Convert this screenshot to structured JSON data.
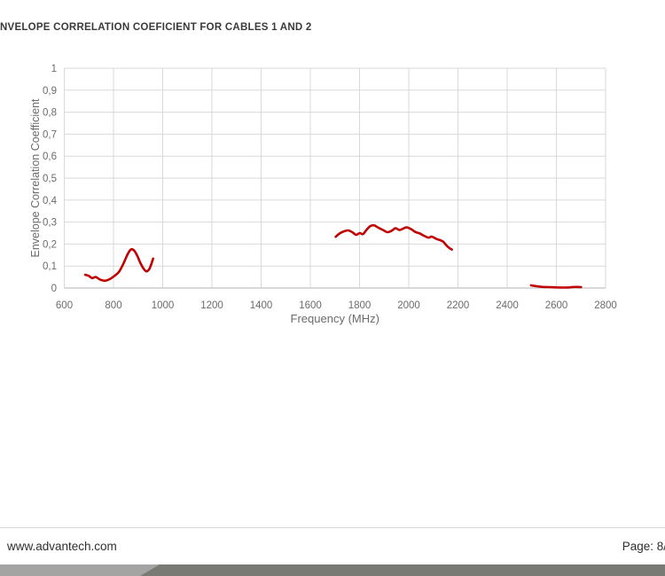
{
  "page": {
    "title_visible": "NVELOPE CORRELATION COEFICIENT FOR CABLES 1 AND 2"
  },
  "footer": {
    "website": "www.advantech.com",
    "page_label": "Page: 8/"
  },
  "colors": {
    "line": "#c00000",
    "gridline": "#d9d9d9",
    "axis_line": "#c2c2c2",
    "tick_label": "#6b6b6b",
    "axis_title": "#6b6b6b",
    "chart_title": "#3a3a3a",
    "footer_bar_light": "#a4a4a2",
    "footer_bar_dark": "#7a7a74",
    "background": "#ffffff"
  },
  "chart_data": {
    "type": "line",
    "title": "NVELOPE CORRELATION COEFICIENT FOR CABLES 1 AND 2",
    "xlabel": "Frequency (MHz)",
    "ylabel": "Envelope Correlation Coefficient",
    "xlim": [
      600,
      2800
    ],
    "ylim": [
      0,
      1
    ],
    "x_ticks": [
      600,
      800,
      1000,
      1200,
      1400,
      1600,
      1800,
      2000,
      2200,
      2400,
      2600,
      2800
    ],
    "y_ticks": [
      {
        "value": 1,
        "label": "1"
      },
      {
        "value": 0.9,
        "label": "0,9"
      },
      {
        "value": 0.8,
        "label": "0,8"
      },
      {
        "value": 0.7,
        "label": "0,7"
      },
      {
        "value": 0.6,
        "label": "0,6"
      },
      {
        "value": 0.5,
        "label": "0,5"
      },
      {
        "value": 0.4,
        "label": "0,4"
      },
      {
        "value": 0.3,
        "label": "0,3"
      },
      {
        "value": 0.2,
        "label": "0,2"
      },
      {
        "value": 0.1,
        "label": "0,1"
      },
      {
        "value": 0,
        "label": "0"
      }
    ],
    "grid": true,
    "legend": "none",
    "series": [
      {
        "color": "#c00000",
        "line_width": 2.6,
        "segments": [
          [
            [
              685,
              0.06
            ],
            [
              700,
              0.055
            ],
            [
              713,
              0.045
            ],
            [
              728,
              0.05
            ],
            [
              746,
              0.038
            ],
            [
              766,
              0.033
            ],
            [
              786,
              0.041
            ],
            [
              806,
              0.057
            ],
            [
              822,
              0.073
            ],
            [
              840,
              0.11
            ],
            [
              858,
              0.155
            ],
            [
              872,
              0.176
            ],
            [
              885,
              0.169
            ],
            [
              897,
              0.146
            ],
            [
              909,
              0.115
            ],
            [
              921,
              0.09
            ],
            [
              933,
              0.076
            ],
            [
              945,
              0.085
            ],
            [
              953,
              0.107
            ],
            [
              961,
              0.134
            ]
          ],
          [
            [
              1703,
              0.233
            ],
            [
              1719,
              0.248
            ],
            [
              1737,
              0.258
            ],
            [
              1755,
              0.262
            ],
            [
              1770,
              0.254
            ],
            [
              1786,
              0.242
            ],
            [
              1801,
              0.25
            ],
            [
              1814,
              0.245
            ],
            [
              1828,
              0.264
            ],
            [
              1843,
              0.281
            ],
            [
              1859,
              0.285
            ],
            [
              1877,
              0.274
            ],
            [
              1895,
              0.264
            ],
            [
              1913,
              0.254
            ],
            [
              1931,
              0.261
            ],
            [
              1946,
              0.272
            ],
            [
              1961,
              0.264
            ],
            [
              1975,
              0.269
            ],
            [
              1991,
              0.276
            ],
            [
              2009,
              0.268
            ],
            [
              2027,
              0.255
            ],
            [
              2045,
              0.248
            ],
            [
              2063,
              0.237
            ],
            [
              2081,
              0.229
            ],
            [
              2093,
              0.234
            ],
            [
              2111,
              0.224
            ],
            [
              2129,
              0.217
            ],
            [
              2141,
              0.21
            ],
            [
              2153,
              0.194
            ],
            [
              2165,
              0.182
            ],
            [
              2175,
              0.175
            ]
          ],
          [
            [
              2497,
              0.012
            ],
            [
              2520,
              0.008
            ],
            [
              2545,
              0.005
            ],
            [
              2570,
              0.004
            ],
            [
              2600,
              0.003
            ],
            [
              2630,
              0.002
            ],
            [
              2655,
              0.003
            ],
            [
              2676,
              0.005
            ],
            [
              2700,
              0.004
            ]
          ]
        ]
      }
    ]
  }
}
